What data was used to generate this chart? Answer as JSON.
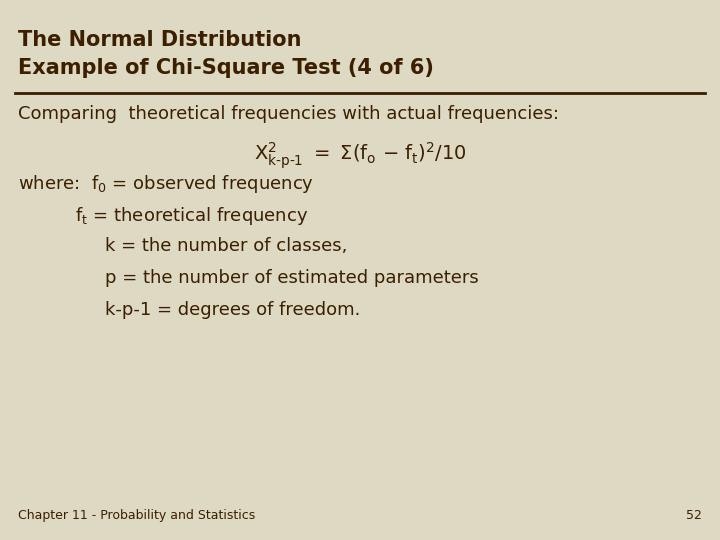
{
  "background_color": "#ddd9c3",
  "title_line1": "The Normal Distribution",
  "title_line2": "Example of Chi-Square Test (4 of 6)",
  "title_color": "#3b1f00",
  "title_fontsize": 15,
  "separator_color": "#3b1f00",
  "body_color": "#3b1f00",
  "body_fontsize": 13,
  "formula_fontsize": 14,
  "footer_text": "Chapter 11 - Probability and Statistics",
  "footer_page": "52",
  "footer_fontsize": 9,
  "line1": "Comparing  theoretical frequencies with actual frequencies:",
  "indent2": "k = the number of classes,",
  "indent3": "p = the number of estimated parameters",
  "indent4": "k-p-1 = degrees of freedom."
}
